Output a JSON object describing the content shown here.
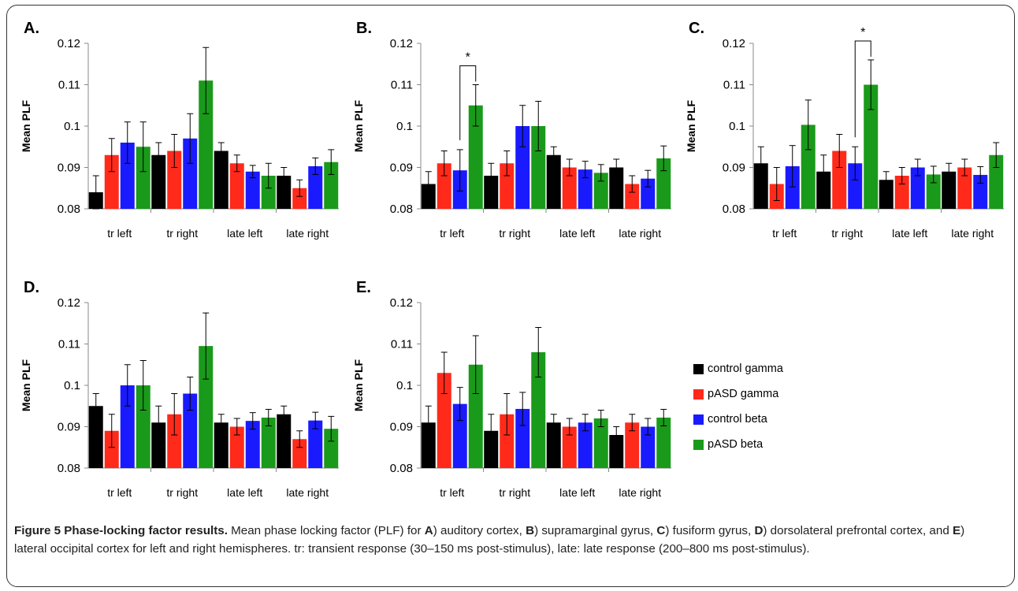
{
  "legend": [
    {
      "name": "control gamma",
      "color": "#000000"
    },
    {
      "name": "pASD gamma",
      "color": "#ff2a1a"
    },
    {
      "name": "control beta",
      "color": "#1a1aff"
    },
    {
      "name": "pASD beta",
      "color": "#1a9a1a"
    }
  ],
  "caption": {
    "title": "Figure 5 Phase-locking factor results.",
    "t1": " Mean phase locking factor (PLF) for ",
    "A": "A",
    "t2": ") auditory cortex, ",
    "B": "B",
    "t3": ") supramarginal gyrus, ",
    "C": "C",
    "t4": ") fusiform gyrus, ",
    "D": "D",
    "t5": ") dorsolateral prefrontal cortex, and ",
    "E": "E",
    "t6": ") lateral occipital cortex for left and right hemispheres. tr: transient response (30–150 ms post-stimulus), late: late response (200–800 ms post-stimulus)."
  },
  "chart_data": [
    {
      "panel": "A.",
      "type": "bar",
      "ylabel": "Mean PLF",
      "ylim": [
        0.08,
        0.12
      ],
      "yticks": [
        "0.08",
        "0.09",
        "0.1",
        "0.11",
        "0.12"
      ],
      "categories": [
        "tr left",
        "tr right",
        "late left",
        "late right"
      ],
      "series": [
        {
          "name": "control gamma",
          "values": [
            0.084,
            0.093,
            0.094,
            0.088
          ],
          "err": [
            0.004,
            0.003,
            0.002,
            0.002
          ]
        },
        {
          "name": "pASD gamma",
          "values": [
            0.093,
            0.094,
            0.091,
            0.085
          ],
          "err": [
            0.004,
            0.004,
            0.002,
            0.002
          ]
        },
        {
          "name": "control beta",
          "values": [
            0.096,
            0.097,
            0.089,
            0.0903
          ],
          "err": [
            0.005,
            0.006,
            0.0015,
            0.002
          ]
        },
        {
          "name": "pASD beta",
          "values": [
            0.095,
            0.111,
            0.088,
            0.0913
          ],
          "err": [
            0.006,
            0.008,
            0.003,
            0.003
          ]
        }
      ],
      "annotations": []
    },
    {
      "panel": "B.",
      "type": "bar",
      "ylabel": "Mean PLF",
      "ylim": [
        0.08,
        0.12
      ],
      "yticks": [
        "0.08",
        "0.09",
        "0.1",
        "0.11",
        "0.12"
      ],
      "categories": [
        "tr left",
        "tr right",
        "late left",
        "late right"
      ],
      "series": [
        {
          "name": "control gamma",
          "values": [
            0.086,
            0.088,
            0.093,
            0.09
          ],
          "err": [
            0.003,
            0.003,
            0.002,
            0.002
          ]
        },
        {
          "name": "pASD gamma",
          "values": [
            0.091,
            0.091,
            0.09,
            0.086
          ],
          "err": [
            0.003,
            0.003,
            0.002,
            0.002
          ]
        },
        {
          "name": "control beta",
          "values": [
            0.0893,
            0.1,
            0.0895,
            0.0873
          ],
          "err": [
            0.005,
            0.005,
            0.002,
            0.002
          ]
        },
        {
          "name": "pASD beta",
          "values": [
            0.105,
            0.1,
            0.0887,
            0.0922
          ],
          "err": [
            0.005,
            0.006,
            0.002,
            0.003
          ]
        }
      ],
      "annotations": [
        {
          "text": "*",
          "category": 0,
          "from_series": 2,
          "to_series": 3
        }
      ]
    },
    {
      "panel": "C.",
      "type": "bar",
      "ylabel": "Mean PLF",
      "ylim": [
        0.08,
        0.12
      ],
      "yticks": [
        "0.08",
        "0.09",
        "0.1",
        "0.11",
        "0.12"
      ],
      "categories": [
        "tr left",
        "tr right",
        "late left",
        "late right"
      ],
      "series": [
        {
          "name": "control gamma",
          "values": [
            0.091,
            0.089,
            0.087,
            0.089
          ],
          "err": [
            0.004,
            0.004,
            0.002,
            0.002
          ]
        },
        {
          "name": "pASD gamma",
          "values": [
            0.086,
            0.094,
            0.088,
            0.09
          ],
          "err": [
            0.004,
            0.004,
            0.002,
            0.002
          ]
        },
        {
          "name": "control beta",
          "values": [
            0.0903,
            0.091,
            0.09,
            0.0882
          ],
          "err": [
            0.005,
            0.004,
            0.002,
            0.002
          ]
        },
        {
          "name": "pASD beta",
          "values": [
            0.1003,
            0.11,
            0.0883,
            0.093
          ],
          "err": [
            0.006,
            0.006,
            0.002,
            0.003
          ]
        }
      ],
      "annotations": [
        {
          "text": "*",
          "category": 1,
          "from_series": 2,
          "to_series": 3
        }
      ]
    },
    {
      "panel": "D.",
      "type": "bar",
      "ylabel": "Mean PLF",
      "ylim": [
        0.08,
        0.12
      ],
      "yticks": [
        "0.08",
        "0.09",
        "0.1",
        "0.11",
        "0.12"
      ],
      "categories": [
        "tr left",
        "tr right",
        "late left",
        "late right"
      ],
      "series": [
        {
          "name": "control gamma",
          "values": [
            0.095,
            0.091,
            0.091,
            0.093
          ],
          "err": [
            0.003,
            0.004,
            0.002,
            0.002
          ]
        },
        {
          "name": "pASD gamma",
          "values": [
            0.089,
            0.093,
            0.09,
            0.087
          ],
          "err": [
            0.004,
            0.005,
            0.002,
            0.002
          ]
        },
        {
          "name": "control beta",
          "values": [
            0.1,
            0.098,
            0.0914,
            0.0915
          ],
          "err": [
            0.005,
            0.004,
            0.002,
            0.002
          ]
        },
        {
          "name": "pASD beta",
          "values": [
            0.1,
            0.1095,
            0.0922,
            0.0895
          ],
          "err": [
            0.006,
            0.008,
            0.002,
            0.003
          ]
        }
      ],
      "annotations": []
    },
    {
      "panel": "E.",
      "type": "bar",
      "ylabel": "Mean PLF",
      "ylim": [
        0.08,
        0.12
      ],
      "yticks": [
        "0.08",
        "0.09",
        "0.1",
        "0.11",
        "0.12"
      ],
      "categories": [
        "tr left",
        "tr right",
        "late left",
        "late right"
      ],
      "series": [
        {
          "name": "control gamma",
          "values": [
            0.091,
            0.089,
            0.091,
            0.088
          ],
          "err": [
            0.004,
            0.004,
            0.002,
            0.002
          ]
        },
        {
          "name": "pASD gamma",
          "values": [
            0.103,
            0.093,
            0.09,
            0.091
          ],
          "err": [
            0.005,
            0.005,
            0.002,
            0.002
          ]
        },
        {
          "name": "control beta",
          "values": [
            0.0955,
            0.0943,
            0.091,
            0.09
          ],
          "err": [
            0.004,
            0.004,
            0.002,
            0.002
          ]
        },
        {
          "name": "pASD beta",
          "values": [
            0.105,
            0.108,
            0.092,
            0.0922
          ],
          "err": [
            0.007,
            0.006,
            0.002,
            0.002
          ]
        }
      ],
      "annotations": []
    }
  ]
}
